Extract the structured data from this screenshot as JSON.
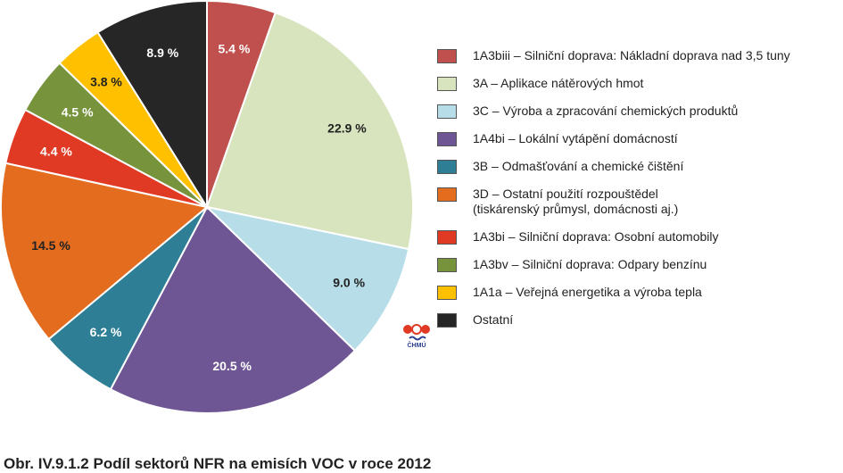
{
  "chart_data": {
    "type": "pie",
    "start_angle_deg": 0,
    "direction": "clockwise",
    "slices": [
      {
        "legend": [
          "1A3biii – Silniční doprava: Nákladní doprava nad 3,5 tuny"
        ],
        "value": 5.4,
        "label": "5.4 %",
        "color": "#c0504d",
        "label_color": "#ffffff"
      },
      {
        "legend": [
          "3A – Aplikace nátěrových hmot"
        ],
        "value": 22.9,
        "label": "22.9 %",
        "color": "#d7e4bd",
        "label_color": "#222222"
      },
      {
        "legend": [
          "3C – Výroba a zpracování chemických produktů"
        ],
        "value": 9.0,
        "label": "9.0 %",
        "color": "#b7dee8",
        "label_color": "#222222"
      },
      {
        "legend": [
          "1A4bi  – Lokální vytápění domácností"
        ],
        "value": 20.5,
        "label": "20.5 %",
        "color": "#6e5593",
        "label_color": "#ffffff"
      },
      {
        "legend": [
          "3B – Odmašťování a chemické čištění"
        ],
        "value": 6.2,
        "label": "6.2 %",
        "color": "#2e7f96",
        "label_color": "#ffffff"
      },
      {
        "legend": [
          "3D – Ostatní použití rozpouštědel",
          "(tiskárenský průmysl, domácnosti aj.)"
        ],
        "value": 14.5,
        "label": "14.5 %",
        "color": "#e46c1f",
        "label_color": "#222222"
      },
      {
        "legend": [
          "1A3bi – Silniční doprava: Osobní automobily"
        ],
        "value": 4.4,
        "label": "4.4 %",
        "color": "#e03a24",
        "label_color": "#ffffff"
      },
      {
        "legend": [
          "1A3bv – Silniční doprava: Odpary benzínu"
        ],
        "value": 4.5,
        "label": "4.5 %",
        "color": "#77933c",
        "label_color": "#ffffff"
      },
      {
        "legend": [
          "1A1a – Veřejná energetika a výroba tepla"
        ],
        "value": 3.8,
        "label": "3.8 %",
        "color": "#ffc000",
        "label_color": "#222222"
      },
      {
        "legend": [
          "Ostatní"
        ],
        "value": 8.9,
        "label": "8.9 %",
        "color": "#262626",
        "label_color": "#ffffff"
      }
    ],
    "legend_position": "right"
  },
  "logo": {
    "text": "ČHMÚ"
  },
  "caption": "Obr. IV.9.1.2  Podíl sektorů NFR na emisích VOC v roce 2012"
}
